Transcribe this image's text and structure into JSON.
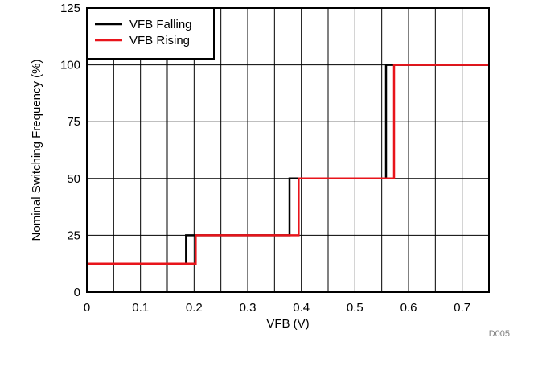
{
  "chart_data": {
    "type": "line",
    "title": "",
    "xlabel": "VFB (V)",
    "ylabel": "Nominal Switching Frequency (%)",
    "xlim": [
      0,
      0.75
    ],
    "ylim": [
      0,
      125
    ],
    "x_ticks": [
      0,
      0.1,
      0.2,
      0.3,
      0.4,
      0.5,
      0.6,
      0.7
    ],
    "x_tick_labels": [
      "0",
      "0.1",
      "0.2",
      "0.3",
      "0.4",
      "0.5",
      "0.6",
      "0.7"
    ],
    "y_ticks": [
      0,
      25,
      50,
      75,
      100,
      125
    ],
    "y_tick_labels": [
      "0",
      "25",
      "50",
      "75",
      "100",
      "125"
    ],
    "x_minor_grid": [
      0.05,
      0.15,
      0.25,
      0.35,
      0.45,
      0.55,
      0.65
    ],
    "grid": true,
    "legend_position": "top-left",
    "series": [
      {
        "name": "VFB Falling",
        "color": "#000000",
        "x": [
          0,
          0.185,
          0.185,
          0.378,
          0.378,
          0.558,
          0.558,
          0.75
        ],
        "y": [
          12.5,
          12.5,
          25,
          25,
          50,
          50,
          100,
          100
        ]
      },
      {
        "name": "VFB Rising",
        "color": "#e8141b",
        "x": [
          0,
          0.203,
          0.203,
          0.395,
          0.395,
          0.573,
          0.573,
          0.75
        ],
        "y": [
          12.5,
          12.5,
          25,
          25,
          50,
          50,
          100,
          100
        ]
      }
    ],
    "figure_note": "D005"
  }
}
